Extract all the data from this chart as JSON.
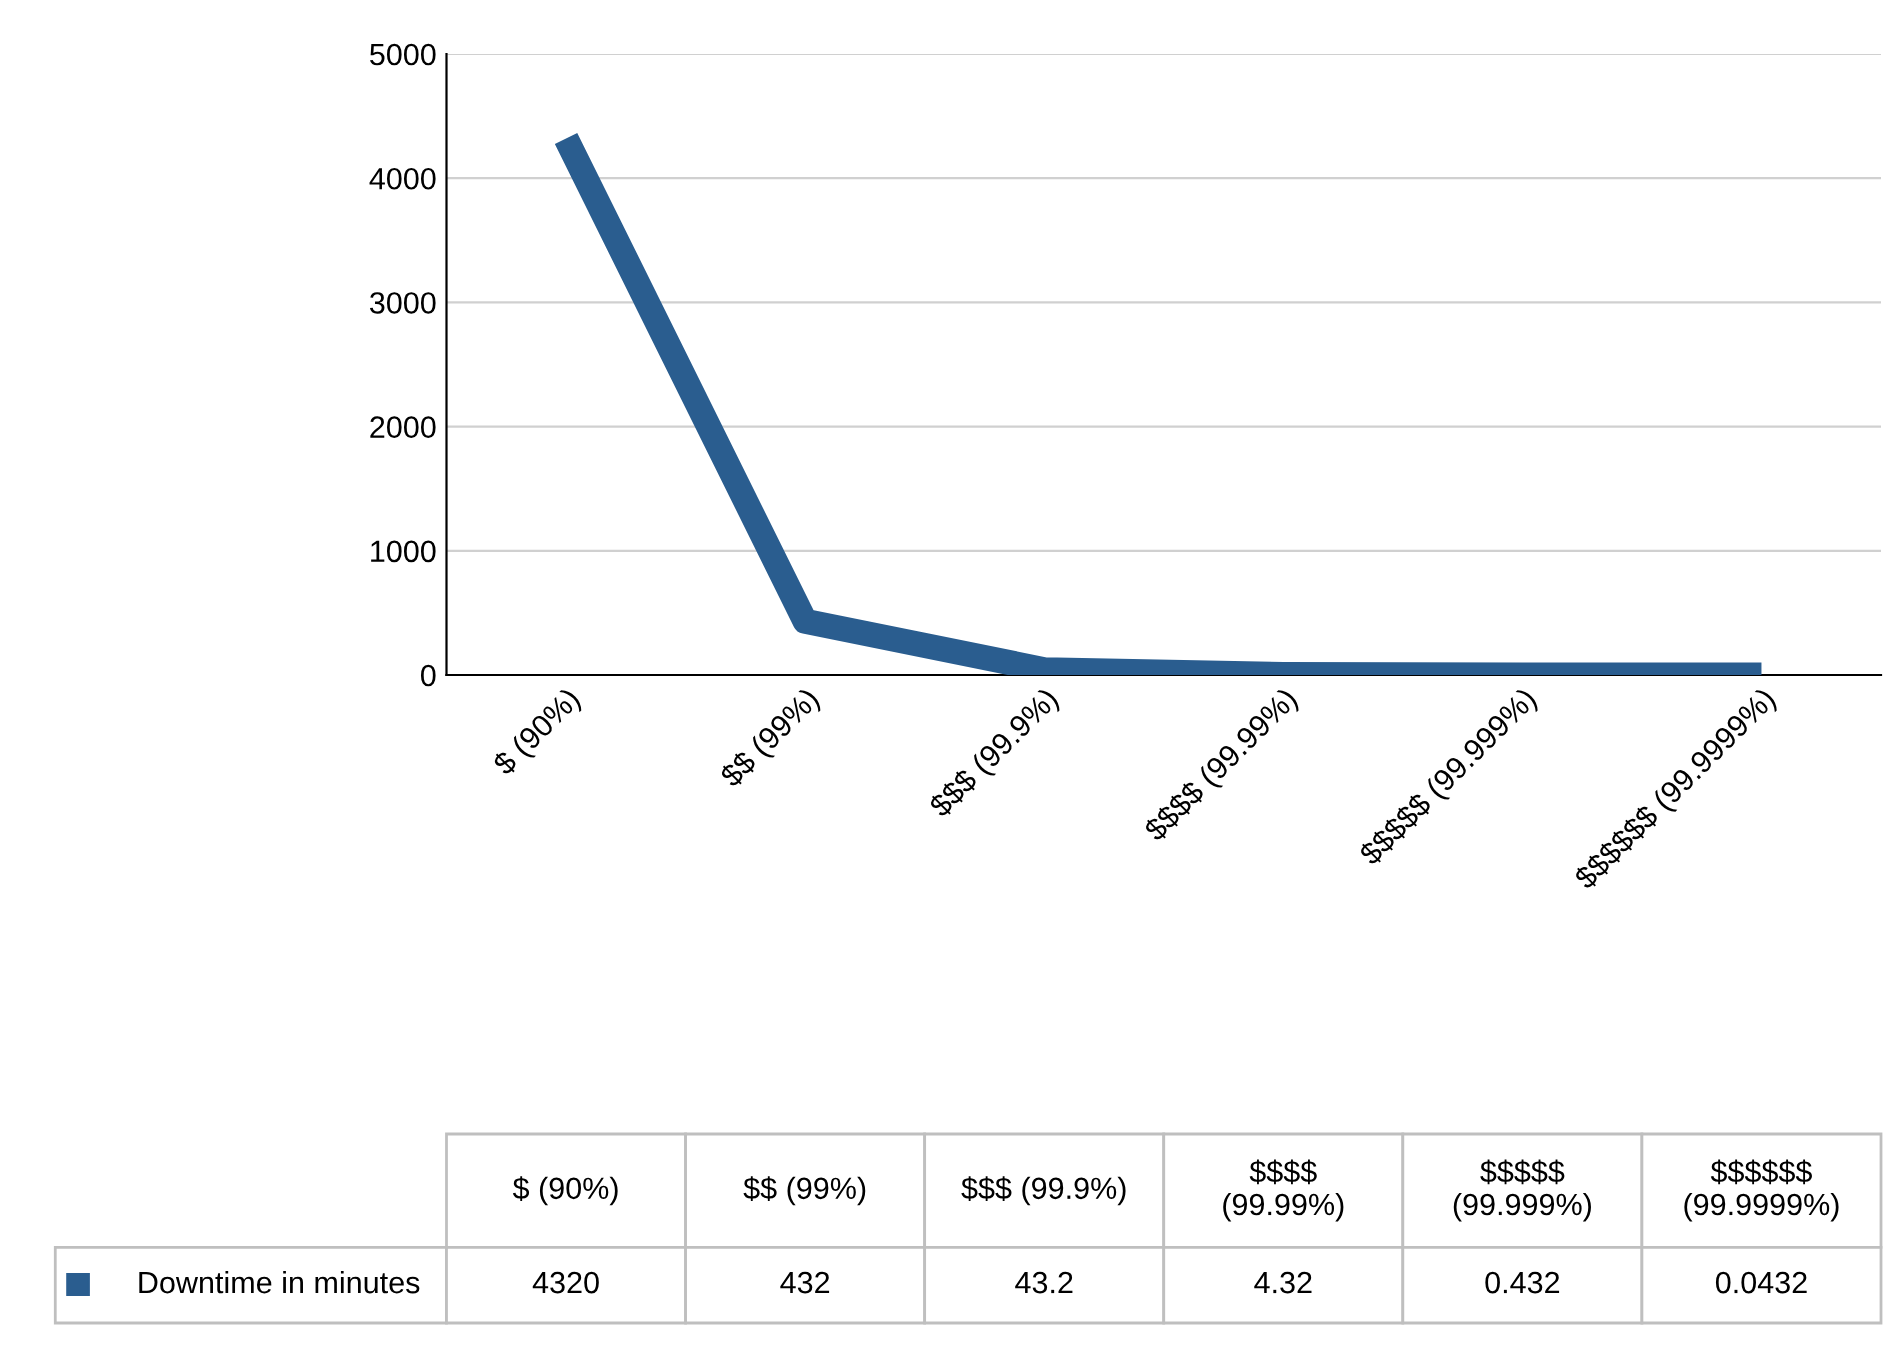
{
  "chart_data": {
    "type": "line",
    "categories": [
      "$ (90%)",
      "$$ (99%)",
      "$$$ (99.9%)",
      "$$$$ (99.99%)",
      "$$$$$ (99.999%)",
      "$$$$$$ (99.9999%)"
    ],
    "series": [
      {
        "name": "Downtime in minutes",
        "color": "#2a5d8f",
        "values": [
          4320,
          432,
          43.2,
          4.32,
          0.432,
          0.0432
        ]
      }
    ],
    "ylim": [
      0,
      5000
    ],
    "yticks": [
      0,
      1000,
      2000,
      3000,
      4000,
      5000
    ],
    "grid": "y",
    "legend": "bottom",
    "data_labels": true,
    "marker": "none",
    "line_style": "solid"
  }
}
